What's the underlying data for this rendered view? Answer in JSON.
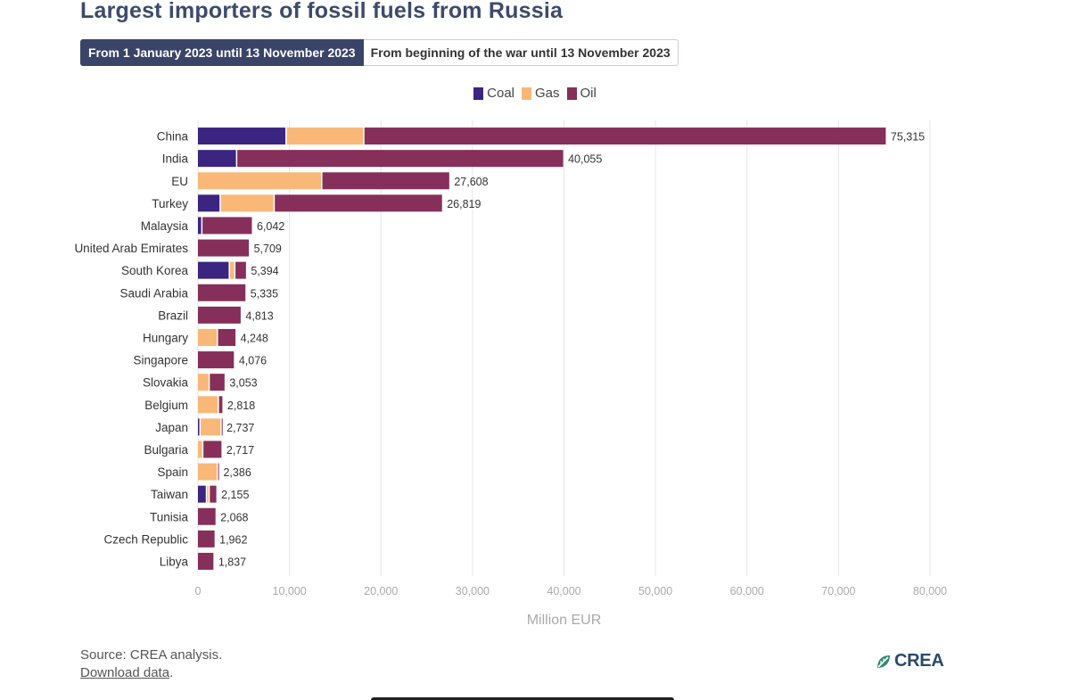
{
  "title": "Largest importers of fossil fuels from Russia",
  "tabs": [
    {
      "label": "From 1 January 2023 until 13 November 2023",
      "active": true
    },
    {
      "label": "From beginning of the war until 13 November 2023",
      "active": false
    }
  ],
  "source_text": "Source: CREA analysis.",
  "download_label": "Download data",
  "logo_text": "CREA",
  "colors": {
    "coal": "#3b2580",
    "gas": "#f9b878",
    "oil": "#862f5a",
    "grid": "#e6e6e6",
    "axis_label": "#aaaaaa"
  },
  "chart_data": {
    "type": "bar",
    "orientation": "horizontal",
    "stacked": true,
    "title": "Largest importers of fossil fuels from Russia",
    "xlabel": "Million EUR",
    "ylabel": "",
    "xlim": [
      0,
      80000
    ],
    "xticks": [
      0,
      10000,
      20000,
      30000,
      40000,
      50000,
      60000,
      70000,
      80000
    ],
    "xtick_labels": [
      "0",
      "10,000",
      "20,000",
      "30,000",
      "40,000",
      "50,000",
      "60,000",
      "70,000",
      "80,000"
    ],
    "legend_position": "top-center",
    "categories": [
      "China",
      "India",
      "EU",
      "Turkey",
      "Malaysia",
      "United Arab Emirates",
      "South Korea",
      "Saudi Arabia",
      "Brazil",
      "Hungary",
      "Singapore",
      "Slovakia",
      "Belgium",
      "Japan",
      "Bulgaria",
      "Spain",
      "Taiwan",
      "Tunisia",
      "Czech Republic",
      "Libya"
    ],
    "series": [
      {
        "name": "Coal",
        "key": "coal",
        "values": [
          9700,
          4300,
          0,
          2500,
          500,
          0,
          3500,
          0,
          0,
          0,
          0,
          0,
          0,
          300,
          0,
          0,
          1000,
          0,
          0,
          0
        ]
      },
      {
        "name": "Gas",
        "key": "gas",
        "values": [
          8500,
          0,
          13600,
          5900,
          0,
          0,
          600,
          0,
          0,
          2200,
          0,
          1300,
          2300,
          2300,
          600,
          2200,
          300,
          0,
          0,
          0
        ]
      },
      {
        "name": "Oil",
        "key": "oil",
        "values": [
          57115,
          35755,
          14008,
          18419,
          5542,
          5709,
          1294,
          5335,
          4813,
          2048,
          4076,
          1753,
          518,
          137,
          2117,
          186,
          855,
          2068,
          1962,
          1837
        ]
      }
    ],
    "totals": [
      75315,
      40055,
      27608,
      26819,
      6042,
      5709,
      5394,
      5335,
      4813,
      4248,
      4076,
      3053,
      2818,
      2737,
      2717,
      2386,
      2155,
      2068,
      1962,
      1837
    ],
    "total_labels": [
      "75,315",
      "40,055",
      "27,608",
      "26,819",
      "6,042",
      "5,709",
      "5,394",
      "5,335",
      "4,813",
      "4,248",
      "4,076",
      "3,053",
      "2,818",
      "2,737",
      "2,717",
      "2,386",
      "2,155",
      "2,068",
      "1,962",
      "1,837"
    ]
  }
}
